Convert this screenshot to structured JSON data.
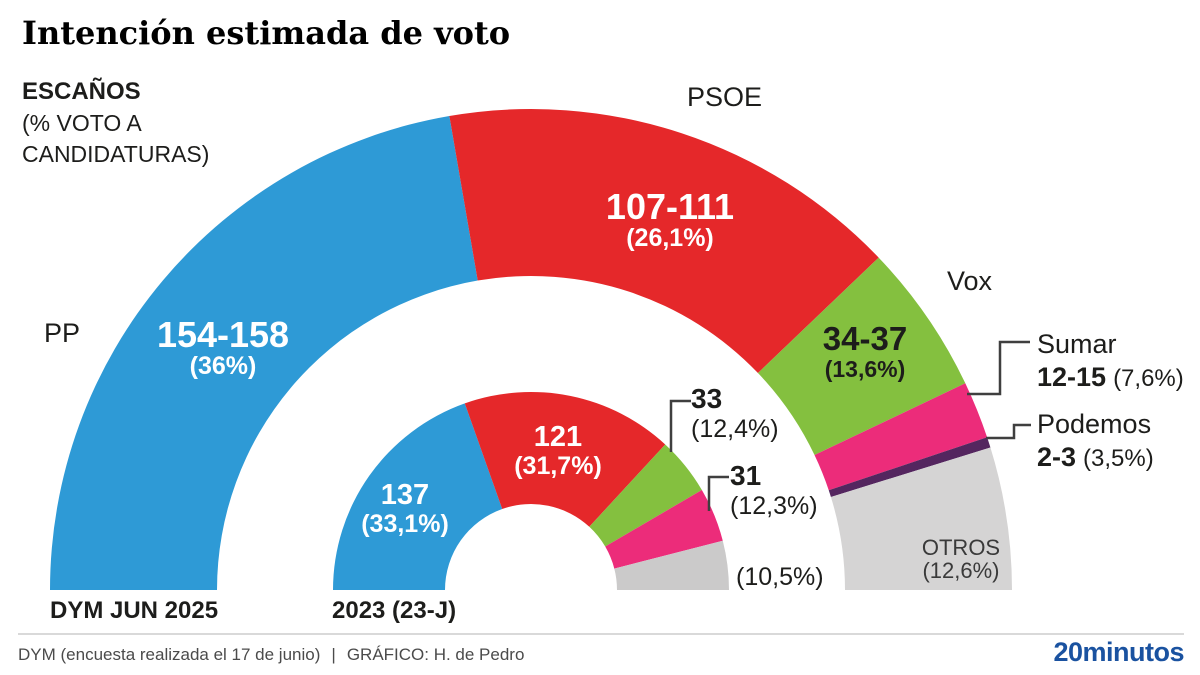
{
  "header": {
    "title": "Intención estimada de voto",
    "units_label": "ESCAÑOS",
    "units_sublabel": "(% VOTO A CANDIDATURAS)"
  },
  "chart_data": {
    "type": "half-donut",
    "total_seats": 350,
    "rings": [
      {
        "name": "DYM JUN 2025",
        "series": [
          {
            "party": "PP",
            "seats_label": "154-158",
            "seats_mid": 156,
            "pct_label": "(36%)",
            "color": "#2E9AD6"
          },
          {
            "party": "PSOE",
            "seats_label": "107-111",
            "seats_mid": 109,
            "pct_label": "(26,1%)",
            "color": "#E5282A"
          },
          {
            "party": "Vox",
            "seats_label": "34-37",
            "seats_mid": 35.5,
            "pct_label": "(13,6%)",
            "color": "#84C03F"
          },
          {
            "party": "Sumar",
            "seats_label": "12-15",
            "seats_mid": 13.5,
            "pct_label": "(7,6%)",
            "color": "#EC2C7A"
          },
          {
            "party": "Podemos",
            "seats_label": "2-3",
            "seats_mid": 2.5,
            "pct_label": "(3,5%)",
            "color": "#54265F"
          },
          {
            "party": "OTROS",
            "seats_label": "",
            "seats_mid": 33.5,
            "pct_label": "(12,6%)",
            "color": "#D5D4D4"
          }
        ]
      },
      {
        "name": "2023 (23-J)",
        "series": [
          {
            "party": "PP",
            "seats_label": "137",
            "seats_mid": 137,
            "pct_label": "(33,1%)",
            "color": "#2E9AD6"
          },
          {
            "party": "PSOE",
            "seats_label": "121",
            "seats_mid": 121,
            "pct_label": "(31,7%)",
            "color": "#E5282A"
          },
          {
            "party": "Vox",
            "seats_label": "33",
            "seats_mid": 33,
            "pct_label": "(12,4%)",
            "color": "#84C03F"
          },
          {
            "party": "Sumar",
            "seats_label": "31",
            "seats_mid": 31,
            "pct_label": "(12,3%)",
            "color": "#EC2C7A"
          },
          {
            "party": "OTROS",
            "seats_label": "",
            "seats_mid": 28,
            "pct_label": "(10,5%)",
            "color": "#CBCACA"
          }
        ]
      }
    ]
  },
  "footer": {
    "source": "DYM (encuesta realizada el 17 de junio)",
    "divider": "|",
    "credit": "GRÁFICO: H. de Pedro",
    "logo": "20minutos",
    "logo_color": "#1A52A0"
  }
}
